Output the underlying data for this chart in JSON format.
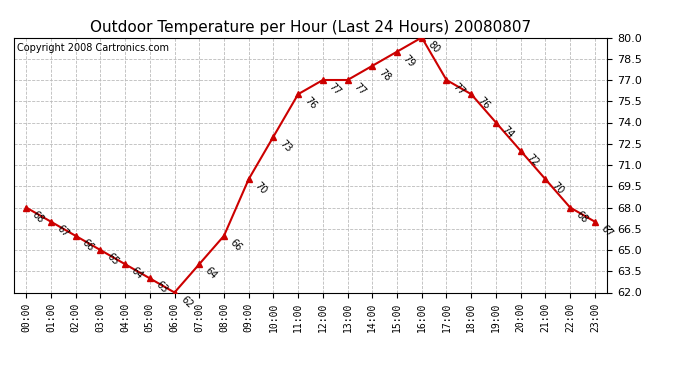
{
  "title": "Outdoor Temperature per Hour (Last 24 Hours) 20080807",
  "copyright": "Copyright 2008 Cartronics.com",
  "hours": [
    "00:00",
    "01:00",
    "02:00",
    "03:00",
    "04:00",
    "05:00",
    "06:00",
    "07:00",
    "08:00",
    "09:00",
    "10:00",
    "11:00",
    "12:00",
    "13:00",
    "14:00",
    "15:00",
    "16:00",
    "17:00",
    "18:00",
    "19:00",
    "20:00",
    "21:00",
    "22:00",
    "23:00"
  ],
  "temps": [
    68,
    67,
    66,
    65,
    64,
    63,
    62,
    64,
    66,
    70,
    73,
    76,
    77,
    77,
    78,
    79,
    80,
    77,
    76,
    74,
    72,
    70,
    68,
    67
  ],
  "ylim": [
    62.0,
    80.0
  ],
  "yticks": [
    62.0,
    63.5,
    65.0,
    66.5,
    68.0,
    69.5,
    71.0,
    72.5,
    74.0,
    75.5,
    77.0,
    78.5,
    80.0
  ],
  "line_color": "#cc0000",
  "marker": "^",
  "marker_color": "#cc0000",
  "marker_size": 4,
  "line_width": 1.5,
  "bg_color": "#ffffff",
  "grid_color": "#bbbbbb",
  "title_fontsize": 11,
  "label_fontsize": 7,
  "annotation_fontsize": 7,
  "copyright_fontsize": 7
}
